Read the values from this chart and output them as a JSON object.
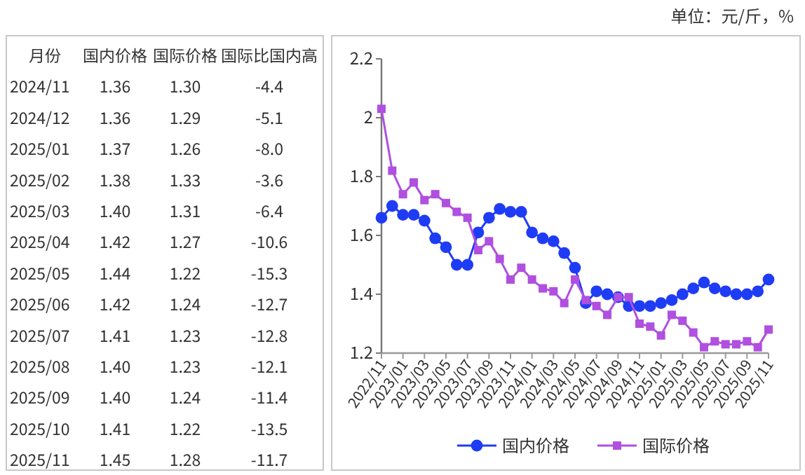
{
  "chart_data": [
    {
      "type": "other",
      "xlabel": "月份",
      "categories": [
        "2024/11",
        "2024/12",
        "2025/01",
        "2025/02",
        "2025/03",
        "2025/04",
        "2025/05",
        "2025/06",
        "2025/07",
        "2025/08",
        "2025/09",
        "2025/10",
        "2025/11"
      ],
      "series": [
        {
          "name": "国内价格",
          "values": [
            1.36,
            1.36,
            1.37,
            1.38,
            1.4,
            1.42,
            1.44,
            1.42,
            1.41,
            1.4,
            1.4,
            1.41,
            1.45
          ],
          "value_labels": [
            "1.36",
            "1.36",
            "1.37",
            "1.38",
            "1.40",
            "1.42",
            "1.44",
            "1.42",
            "1.41",
            "1.40",
            "1.40",
            "1.41",
            "1.45"
          ]
        },
        {
          "name": "国际价格",
          "values": [
            1.3,
            1.29,
            1.26,
            1.33,
            1.31,
            1.27,
            1.22,
            1.24,
            1.23,
            1.23,
            1.24,
            1.22,
            1.28
          ],
          "value_labels": [
            "1.30",
            "1.29",
            "1.26",
            "1.33",
            "1.31",
            "1.27",
            "1.22",
            "1.24",
            "1.23",
            "1.23",
            "1.24",
            "1.22",
            "1.28"
          ]
        },
        {
          "name": "国际比国内高",
          "values": [
            -4.4,
            -5.1,
            -8.0,
            -3.6,
            -6.4,
            -10.6,
            -15.3,
            -12.7,
            -12.8,
            -12.1,
            -11.4,
            -13.5,
            -11.7
          ],
          "value_labels": [
            "-4.4",
            "-5.1",
            "-8.0",
            "-3.6",
            "-6.4",
            "-10.6",
            "-15.3",
            "-12.7",
            "-12.8",
            "-12.1",
            "-11.4",
            "-13.5",
            "-11.7"
          ]
        }
      ]
    },
    {
      "type": "line",
      "annotations": [
        "单位：元/斤，%"
      ],
      "x": [
        "2022-11",
        "2022-12",
        "2023-01",
        "2023-02",
        "2023-03",
        "2023-04",
        "2023-05",
        "2023-06",
        "2023-07",
        "2023-08",
        "2023-09",
        "2023-10",
        "2023-11",
        "2023-12",
        "2024-01",
        "2024-02",
        "2024-03",
        "2024-04",
        "2024-05",
        "2024-06",
        "2024-07",
        "2024-08",
        "2024-09",
        "2024-10",
        "2024-11",
        "2024-12",
        "2025-01",
        "2025-02",
        "2025-03",
        "2025-04",
        "2025-05",
        "2025-06",
        "2025-07",
        "2025-08",
        "2025-09",
        "2025-10",
        "2025-11"
      ],
      "xlim": [
        "2022-11",
        "2025-11"
      ],
      "xticks": [
        {
          "value": "2022-11",
          "label": "2022/11"
        },
        {
          "value": "2023-01",
          "label": "2023/01"
        },
        {
          "value": "2023-03",
          "label": "2023/03"
        },
        {
          "value": "2023-05",
          "label": "2023/05"
        },
        {
          "value": "2023-07",
          "label": "2023/07"
        },
        {
          "value": "2023-09",
          "label": "2023/09"
        },
        {
          "value": "2023-11",
          "label": "2023/11"
        },
        {
          "value": "2024-01",
          "label": "2024/01"
        },
        {
          "value": "2024-03",
          "label": "2024/03"
        },
        {
          "value": "2024-05",
          "label": "2024/05"
        },
        {
          "value": "2024-07",
          "label": "2024/07"
        },
        {
          "value": "2024-09",
          "label": "2024/09"
        },
        {
          "value": "2024-11",
          "label": "2024/11"
        },
        {
          "value": "2025-01",
          "label": "2025/01"
        },
        {
          "value": "2025-03",
          "label": "2025/03"
        },
        {
          "value": "2025-05",
          "label": "2025/05"
        },
        {
          "value": "2025-07",
          "label": "2025/07"
        },
        {
          "value": "2025-09",
          "label": "2025/09"
        },
        {
          "value": "2025-11",
          "label": "2025/11"
        }
      ],
      "ylim": [
        1.2,
        2.2
      ],
      "yticks": [
        1.2,
        1.4,
        1.6,
        1.8,
        2,
        2.2
      ],
      "grid": false,
      "legend": "bottom",
      "series": [
        {
          "name": "国内价格",
          "color": "#1f3cf5",
          "marker": "circle",
          "values": [
            1.66,
            1.7,
            1.67,
            1.67,
            1.65,
            1.59,
            1.56,
            1.5,
            1.5,
            1.61,
            1.66,
            1.69,
            1.68,
            1.68,
            1.61,
            1.59,
            1.58,
            1.54,
            1.49,
            1.37,
            1.41,
            1.4,
            1.39,
            1.36,
            1.36,
            1.36,
            1.37,
            1.38,
            1.4,
            1.42,
            1.44,
            1.42,
            1.41,
            1.4,
            1.4,
            1.41,
            1.45
          ]
        },
        {
          "name": "国际价格",
          "color": "#b04fe0",
          "marker": "square",
          "values": [
            2.03,
            1.82,
            1.74,
            1.78,
            1.72,
            1.74,
            1.71,
            1.68,
            1.66,
            1.55,
            1.58,
            1.52,
            1.45,
            1.49,
            1.45,
            1.42,
            1.41,
            1.37,
            1.45,
            1.38,
            1.36,
            1.33,
            1.39,
            1.39,
            1.3,
            1.29,
            1.26,
            1.33,
            1.31,
            1.27,
            1.22,
            1.24,
            1.23,
            1.23,
            1.24,
            1.22,
            1.28
          ]
        }
      ]
    }
  ]
}
